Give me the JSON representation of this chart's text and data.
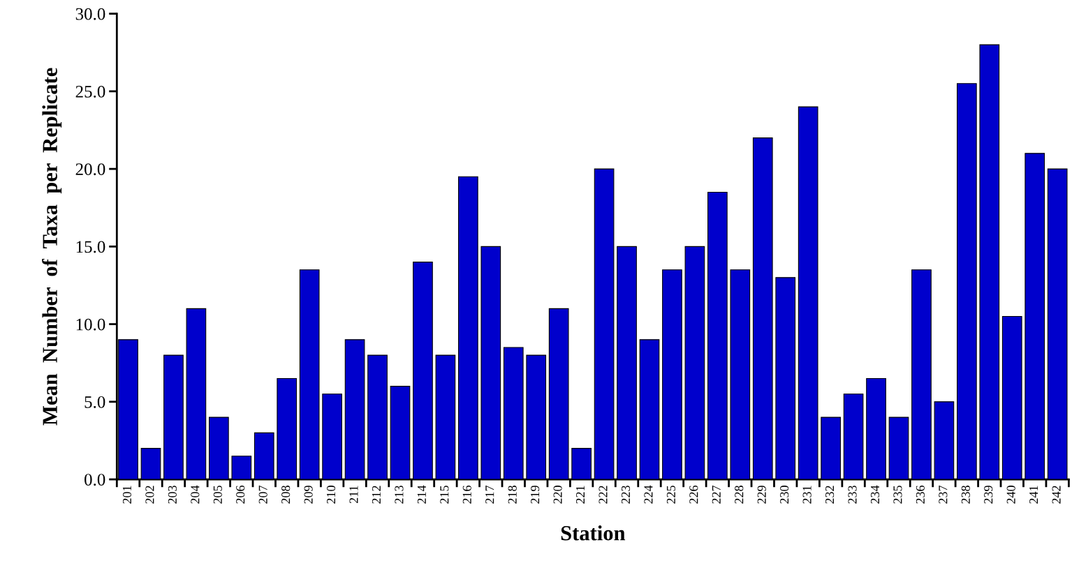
{
  "chart_data": {
    "type": "bar",
    "xlabel": "Station",
    "ylabel": "Mean  Number  of  Taxa  per  Replicate",
    "categories": [
      "201",
      "202",
      "203",
      "204",
      "205",
      "206",
      "207",
      "208",
      "209",
      "210",
      "211",
      "212",
      "213",
      "214",
      "215",
      "216",
      "217",
      "218",
      "219",
      "220",
      "221",
      "222",
      "223",
      "224",
      "225",
      "226",
      "227",
      "228",
      "229",
      "230",
      "231",
      "232",
      "233",
      "234",
      "235",
      "236",
      "237",
      "238",
      "239",
      "240",
      "241",
      "242"
    ],
    "values": [
      9,
      2,
      8,
      11,
      4,
      1.5,
      3,
      6.5,
      13.5,
      5.5,
      9,
      8,
      6,
      14,
      8,
      19.5,
      15,
      8.5,
      8,
      11,
      2,
      20,
      15,
      9,
      13.5,
      15,
      18.5,
      13.5,
      22,
      13,
      24,
      4,
      5.5,
      6.5,
      4,
      13.5,
      5,
      25.5,
      28,
      10.5,
      21,
      20
    ],
    "color": "#0000cc",
    "ylim": [
      0,
      30
    ],
    "yticks": [
      {
        "value": 0,
        "label": "0.0"
      },
      {
        "value": 5,
        "label": "5.0"
      },
      {
        "value": 10,
        "label": "10.0"
      },
      {
        "value": 15,
        "label": "15.0"
      },
      {
        "value": 20,
        "label": "20.0"
      },
      {
        "value": 25,
        "label": "25.0"
      },
      {
        "value": 30,
        "label": "30.0"
      }
    ],
    "grid": false,
    "legend": false
  }
}
